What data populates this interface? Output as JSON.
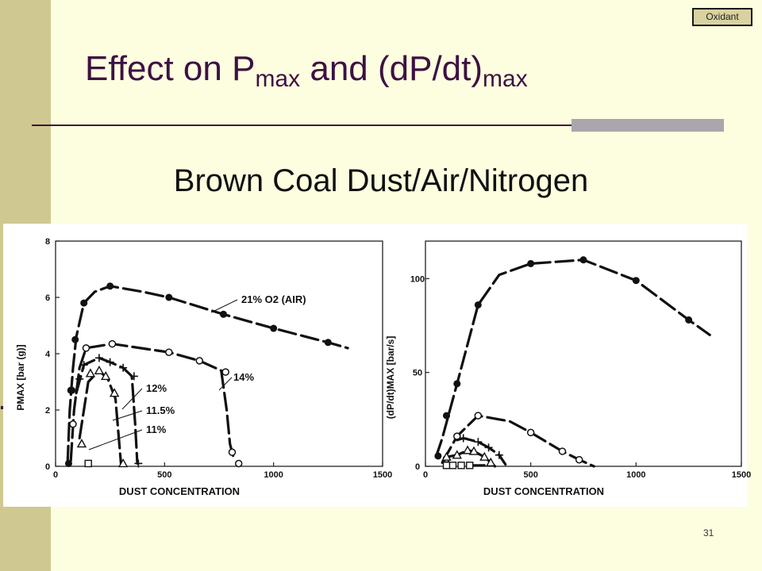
{
  "badge": {
    "text": "Oxidant"
  },
  "slide": {
    "title_main": "Effect on P",
    "title_sub1": "max",
    "title_mid": " and (dP/dt)",
    "title_sub2": "max",
    "subtitle": "Brown Coal Dust/Air/Nitrogen",
    "page_number": "31"
  },
  "colors": {
    "side_band": "#cfc890",
    "background": "#fdfde0",
    "title": "#3d1142"
  },
  "chart_data": [
    {
      "type": "line",
      "xlabel": "DUST CONCENTRATION",
      "ylabel": "PMAX [bar (g)]",
      "xlim": [
        0,
        1500
      ],
      "ylim": [
        0,
        8
      ],
      "xticks": [
        0,
        500,
        1000,
        1500
      ],
      "yticks": [
        0,
        2,
        4,
        6,
        8
      ],
      "series": [
        {
          "name": "21% O2 (AIR)",
          "marker": "filled-circle",
          "points": [
            [
              60,
              0.1
            ],
            [
              70,
              2.7
            ],
            [
              75,
              2.7
            ],
            [
              90,
              4.5
            ],
            [
              130,
              5.8
            ],
            [
              250,
              6.4
            ],
            [
              520,
              6.0
            ],
            [
              770,
              5.4
            ],
            [
              1000,
              4.9
            ],
            [
              1250,
              4.4
            ]
          ],
          "curve": [
            [
              55,
              0.1
            ],
            [
              65,
              2.0
            ],
            [
              80,
              3.5
            ],
            [
              95,
              4.6
            ],
            [
              130,
              5.8
            ],
            [
              180,
              6.2
            ],
            [
              250,
              6.4
            ],
            [
              400,
              6.2
            ],
            [
              520,
              6.0
            ],
            [
              770,
              5.4
            ],
            [
              1000,
              4.9
            ],
            [
              1250,
              4.4
            ],
            [
              1340,
              4.2
            ]
          ]
        },
        {
          "name": "14%",
          "marker": "open-circle",
          "points": [
            [
              80,
              1.5
            ],
            [
              140,
              4.2
            ],
            [
              260,
              4.35
            ],
            [
              520,
              4.05
            ],
            [
              660,
              3.75
            ],
            [
              780,
              3.35
            ],
            [
              810,
              0.5
            ],
            [
              840,
              0.1
            ]
          ],
          "curve": [
            [
              70,
              0.2
            ],
            [
              85,
              2.0
            ],
            [
              110,
              3.5
            ],
            [
              140,
              4.2
            ],
            [
              260,
              4.35
            ],
            [
              520,
              4.05
            ],
            [
              660,
              3.75
            ],
            [
              760,
              3.4
            ],
            [
              785,
              2.0
            ],
            [
              800,
              0.8
            ],
            [
              820,
              0.2
            ]
          ]
        },
        {
          "name": "12%",
          "marker": "plus",
          "points": [
            [
              110,
              3.1
            ],
            [
              130,
              3.6
            ],
            [
              200,
              3.85
            ],
            [
              250,
              3.7
            ],
            [
              310,
              3.5
            ],
            [
              360,
              3.2
            ],
            [
              380,
              0.1
            ]
          ],
          "curve": [
            [
              95,
              2.6
            ],
            [
              130,
              3.6
            ],
            [
              200,
              3.85
            ],
            [
              250,
              3.7
            ],
            [
              310,
              3.5
            ],
            [
              350,
              3.2
            ],
            [
              365,
              1.5
            ],
            [
              375,
              0.1
            ]
          ]
        },
        {
          "name": "11.5%",
          "marker": "triangle",
          "points": [
            [
              120,
              0.8
            ],
            [
              160,
              3.3
            ],
            [
              200,
              3.4
            ],
            [
              230,
              3.2
            ],
            [
              270,
              2.6
            ],
            [
              310,
              0.1
            ]
          ],
          "curve": [
            [
              110,
              1.0
            ],
            [
              150,
              3.0
            ],
            [
              200,
              3.4
            ],
            [
              240,
              3.1
            ],
            [
              275,
              2.4
            ],
            [
              290,
              1.0
            ],
            [
              300,
              0.1
            ]
          ]
        },
        {
          "name": "11%",
          "marker": "square",
          "points": [
            [
              150,
              0.1
            ]
          ],
          "curve": []
        }
      ]
    },
    {
      "type": "line",
      "xlabel": "DUST CONCENTRATION",
      "ylabel": "(dP/dt)MAX [bar/s]",
      "xlim": [
        0,
        1500
      ],
      "ylim": [
        0,
        120
      ],
      "xticks": [
        0,
        500,
        1000,
        1500
      ],
      "yticks": [
        0,
        50,
        100
      ],
      "series": [
        {
          "name": "21% O2 (AIR)",
          "marker": "filled-circle",
          "points": [
            [
              60,
              5.5
            ],
            [
              100,
              27
            ],
            [
              150,
              44
            ],
            [
              250,
              86
            ],
            [
              500,
              108
            ],
            [
              750,
              110
            ],
            [
              1000,
              99
            ],
            [
              1250,
              78
            ]
          ],
          "curve": [
            [
              50,
              5
            ],
            [
              80,
              15
            ],
            [
              150,
              44
            ],
            [
              250,
              86
            ],
            [
              350,
              102
            ],
            [
              500,
              108
            ],
            [
              750,
              110
            ],
            [
              1000,
              99
            ],
            [
              1250,
              78
            ],
            [
              1350,
              70
            ]
          ]
        },
        {
          "name": "14%",
          "marker": "open-circle",
          "points": [
            [
              100,
              4
            ],
            [
              150,
              16
            ],
            [
              250,
              27
            ],
            [
              500,
              18
            ],
            [
              650,
              8
            ],
            [
              730,
              3.5
            ]
          ],
          "curve": [
            [
              80,
              2
            ],
            [
              150,
              16
            ],
            [
              250,
              27
            ],
            [
              400,
              24
            ],
            [
              500,
              18
            ],
            [
              650,
              8
            ],
            [
              730,
              3.5
            ],
            [
              800,
              0
            ]
          ]
        },
        {
          "name": "12%",
          "marker": "plus",
          "points": [
            [
              180,
              15
            ],
            [
              250,
              13
            ],
            [
              300,
              10
            ],
            [
              350,
              6
            ]
          ],
          "curve": [
            [
              150,
              14
            ],
            [
              180,
              15
            ],
            [
              250,
              13
            ],
            [
              300,
              10
            ],
            [
              350,
              6
            ],
            [
              380,
              1
            ]
          ]
        },
        {
          "name": "11.5%",
          "marker": "triangle",
          "points": [
            [
              100,
              5
            ],
            [
              150,
              6
            ],
            [
              200,
              8.5
            ],
            [
              230,
              8
            ],
            [
              280,
              5
            ],
            [
              310,
              2
            ]
          ],
          "curve": [
            [
              100,
              5
            ],
            [
              150,
              6
            ],
            [
              200,
              8.5
            ],
            [
              230,
              8
            ],
            [
              280,
              5
            ],
            [
              310,
              2
            ],
            [
              330,
              0
            ]
          ]
        },
        {
          "name": "11%",
          "marker": "square",
          "points": [
            [
              100,
              0.5
            ],
            [
              130,
              0.5
            ],
            [
              170,
              0.5
            ],
            [
              210,
              0.5
            ]
          ],
          "curve": [
            [
              210,
              0.5
            ],
            [
              280,
              0.5
            ]
          ]
        }
      ]
    }
  ],
  "annotations": {
    "left": [
      "21%  O2  (AIR)",
      "14%",
      "12%",
      "11.5%",
      "11%"
    ]
  }
}
